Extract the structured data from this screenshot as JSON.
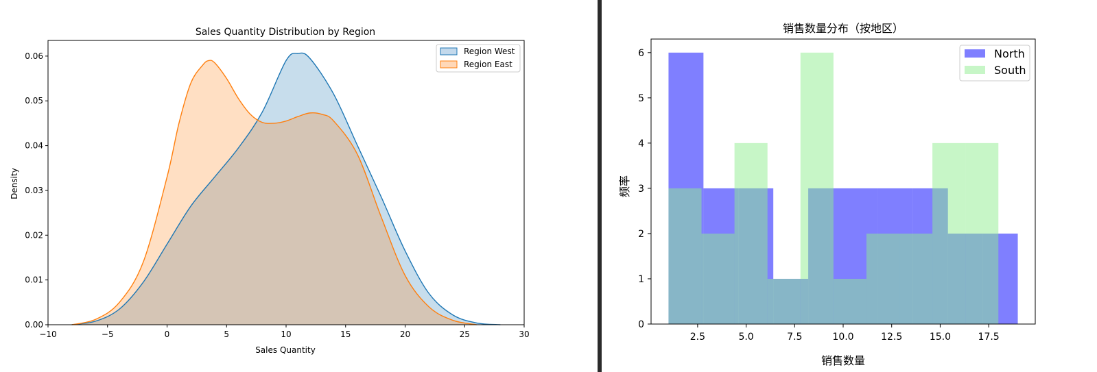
{
  "chart_data": [
    {
      "type": "area",
      "title": "Sales Quantity Distribution by Region",
      "xlabel": "Sales Quantity",
      "ylabel": "Density",
      "xlim": [
        -10,
        30
      ],
      "ylim": [
        0,
        0.0635
      ],
      "xticks": [
        -10,
        -5,
        0,
        5,
        10,
        15,
        20,
        25,
        30
      ],
      "xtick_labels": [
        "−10",
        "−5",
        "0",
        "5",
        "10",
        "15",
        "20",
        "25",
        "30"
      ],
      "yticks": [
        0,
        0.01,
        0.02,
        0.03,
        0.04,
        0.05,
        0.06
      ],
      "ytick_labels": [
        "0.00",
        "0.01",
        "0.02",
        "0.03",
        "0.04",
        "0.05",
        "0.06"
      ],
      "grid": false,
      "legend": "top-right",
      "series": [
        {
          "name": "Region West",
          "color": "#1f77b4",
          "fill": "#c3d9ec",
          "x": [
            -8.0,
            -6.0,
            -4.0,
            -2.0,
            0.0,
            2.0,
            4.0,
            6.0,
            8.0,
            10.0,
            11.0,
            12.0,
            14.0,
            16.0,
            18.0,
            20.0,
            22.0,
            24.0,
            26.0,
            28.0
          ],
          "y": [
            0.0,
            0.0008,
            0.0035,
            0.0095,
            0.018,
            0.0265,
            0.033,
            0.0395,
            0.0475,
            0.059,
            0.0606,
            0.0595,
            0.0515,
            0.04,
            0.0285,
            0.0165,
            0.007,
            0.0022,
            0.0004,
            0.0
          ]
        },
        {
          "name": "Region East",
          "color": "#ff7f0e",
          "fill": "#ffd8b8",
          "x": [
            -8.0,
            -6.0,
            -4.0,
            -2.0,
            0.0,
            1.0,
            2.0,
            3.0,
            3.5,
            4.0,
            5.0,
            6.0,
            7.0,
            8.0,
            9.0,
            10.0,
            11.0,
            12.0,
            13.0,
            14.0,
            16.0,
            18.0,
            20.0,
            22.0,
            24.0,
            26.0
          ],
          "y": [
            0.0,
            0.0012,
            0.005,
            0.014,
            0.033,
            0.045,
            0.054,
            0.058,
            0.059,
            0.0585,
            0.055,
            0.0505,
            0.047,
            0.0452,
            0.045,
            0.0455,
            0.0465,
            0.0473,
            0.047,
            0.0455,
            0.038,
            0.024,
            0.011,
            0.004,
            0.001,
            0.0
          ]
        }
      ]
    },
    {
      "type": "bar",
      "title": "销售数量分布（按地区）",
      "xlabel": "销售数量",
      "ylabel": "频率",
      "xlim": [
        0.1,
        19.9
      ],
      "ylim": [
        0,
        6.3
      ],
      "xticks": [
        2.5,
        5.0,
        7.5,
        10.0,
        12.5,
        15.0,
        17.5
      ],
      "xtick_labels": [
        "2.5",
        "5.0",
        "7.5",
        "10.0",
        "12.5",
        "15.0",
        "17.5"
      ],
      "yticks": [
        0,
        1,
        2,
        3,
        4,
        5,
        6
      ],
      "ytick_labels": [
        "0",
        "1",
        "2",
        "3",
        "4",
        "5",
        "6"
      ],
      "grid": false,
      "legend": "top-right",
      "series": [
        {
          "name": "North",
          "color": "#0000ff",
          "opacity": 0.5,
          "bin_edges": [
            1.0,
            2.8,
            4.6,
            6.4,
            8.2,
            10.0,
            11.8,
            13.6,
            15.4,
            17.2,
            19.0
          ],
          "values": [
            6,
            3,
            3,
            1,
            3,
            3,
            3,
            3,
            2,
            2
          ]
        },
        {
          "name": "South",
          "color": "#90ee90",
          "opacity": 0.5,
          "bin_edges": [
            1.0,
            2.7,
            4.4,
            6.1,
            7.8,
            9.5,
            11.2,
            12.9,
            14.6,
            16.3,
            18.0
          ],
          "values": [
            3,
            2,
            4,
            1,
            6,
            1,
            2,
            2,
            4,
            4
          ]
        }
      ]
    }
  ]
}
